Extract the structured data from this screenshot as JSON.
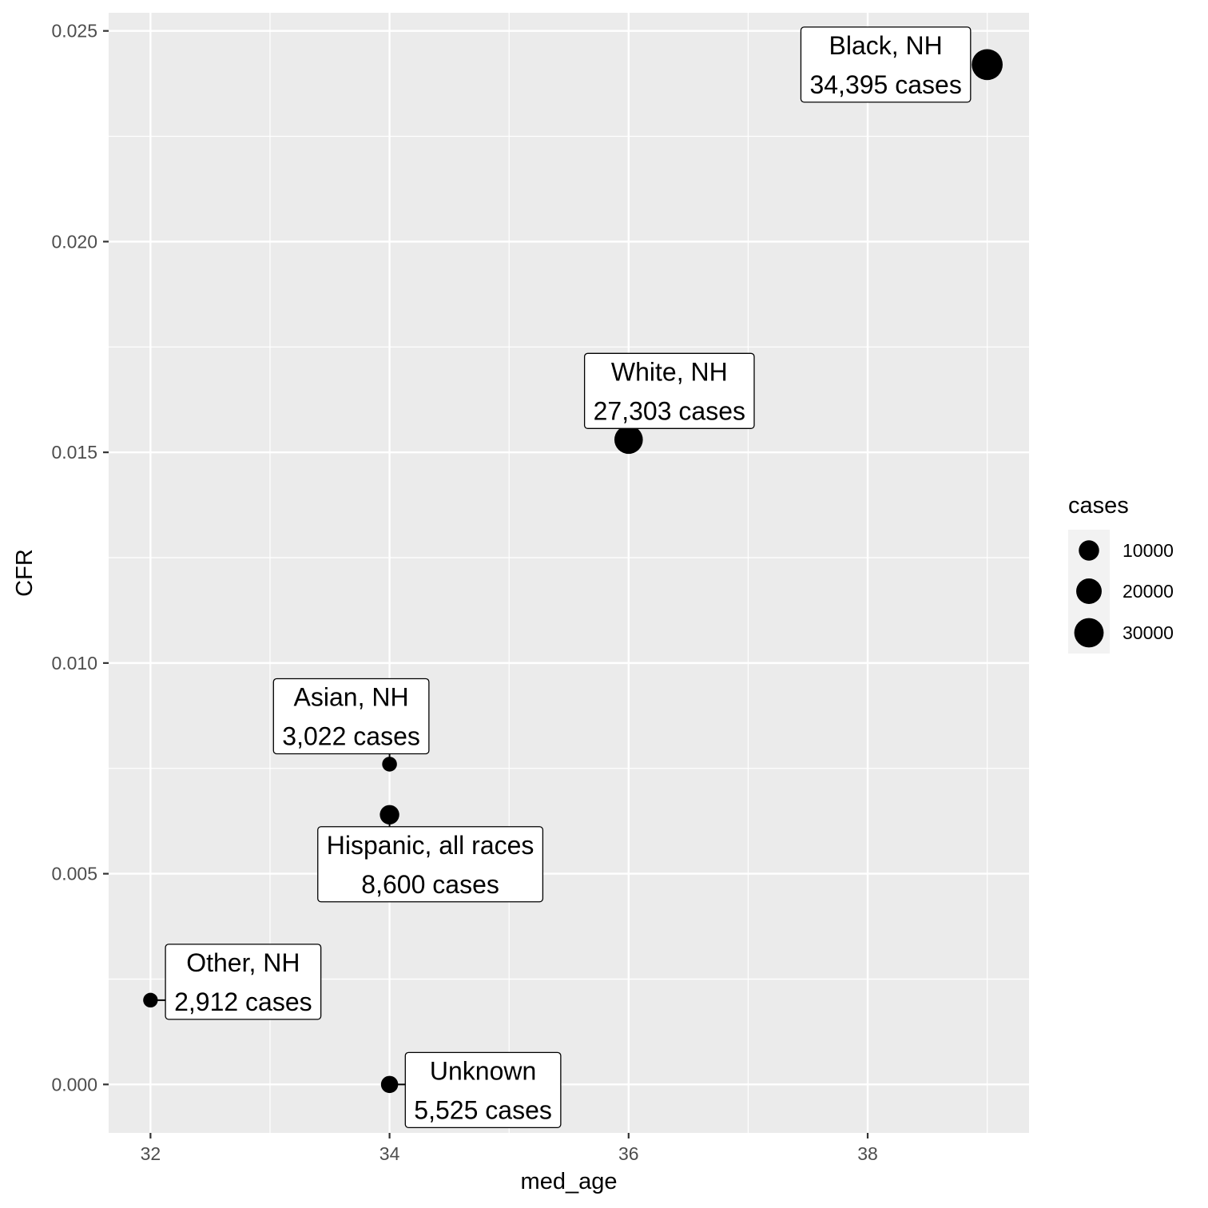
{
  "chart_data": {
    "type": "scatter",
    "xlabel": "med_age",
    "ylabel": "CFR",
    "xlim": [
      31.65,
      39.35
    ],
    "ylim": [
      -0.00115,
      0.02543
    ],
    "x_ticks": [
      {
        "value": 32,
        "label": "32"
      },
      {
        "value": 34,
        "label": "34"
      },
      {
        "value": 36,
        "label": "36"
      },
      {
        "value": 38,
        "label": "38"
      }
    ],
    "y_ticks": [
      {
        "value": 0.0,
        "label": "0.000"
      },
      {
        "value": 0.005,
        "label": "0.005"
      },
      {
        "value": 0.01,
        "label": "0.010"
      },
      {
        "value": 0.015,
        "label": "0.015"
      },
      {
        "value": 0.02,
        "label": "0.020"
      },
      {
        "value": 0.025,
        "label": "0.025"
      }
    ],
    "grid": true,
    "size_legend": {
      "title": "cases",
      "position": "right",
      "entries": [
        {
          "value": 10000,
          "label": "10000"
        },
        {
          "value": 20000,
          "label": "20000"
        },
        {
          "value": 30000,
          "label": "30000"
        }
      ]
    },
    "points": [
      {
        "group": "Black, NH",
        "x": 39,
        "y": 0.0242,
        "cases": 34395,
        "label_line1": "Black, NH",
        "label_line2": "34,395 cases"
      },
      {
        "group": "White, NH",
        "x": 36,
        "y": 0.0153,
        "cases": 27303,
        "label_line1": "White, NH",
        "label_line2": "27,303 cases"
      },
      {
        "group": "Asian, NH",
        "x": 34,
        "y": 0.0076,
        "cases": 3022,
        "label_line1": "Asian, NH",
        "label_line2": "3,022 cases"
      },
      {
        "group": "Hispanic, all races",
        "x": 34,
        "y": 0.0064,
        "cases": 8600,
        "label_line1": "Hispanic, all races",
        "label_line2": "8,600 cases"
      },
      {
        "group": "Other, NH",
        "x": 32,
        "y": 0.002,
        "cases": 2912,
        "label_line1": "Other, NH",
        "label_line2": "2,912 cases"
      },
      {
        "group": "Unknown",
        "x": 34,
        "y": 0.0,
        "cases": 5525,
        "label_line1": "Unknown",
        "label_line2": "5,525 cases"
      }
    ]
  }
}
